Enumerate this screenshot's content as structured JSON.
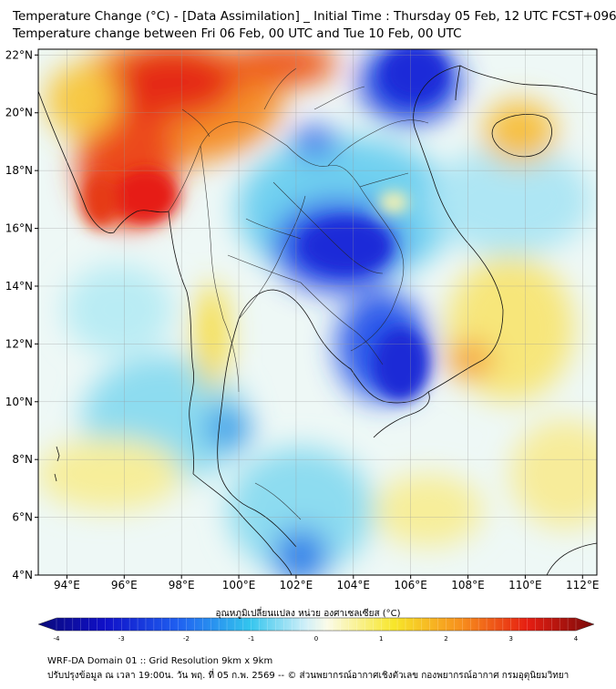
{
  "header": {
    "title_line1": "Temperature Change (°C) - [Data Assimilation] _ Initial Time : Thursday 05 Feb, 12 UTC FCST+096",
    "title_line2": "Temperature change between Fri 06 Feb, 00 UTC and Tue 10 Feb, 00 UTC"
  },
  "map": {
    "lat_labels": [
      "22°N",
      "20°N",
      "18°N",
      "16°N",
      "14°N",
      "12°N",
      "10°N",
      "8°N",
      "6°N",
      "4°N"
    ],
    "lon_labels": [
      "94°E",
      "96°E",
      "98°E",
      "100°E",
      "102°E",
      "104°E",
      "106°E",
      "108°E",
      "110°E",
      "112°E"
    ],
    "lat_values": [
      22,
      20,
      18,
      16,
      14,
      12,
      10,
      8,
      6,
      4
    ],
    "lon_values": [
      94,
      96,
      98,
      100,
      102,
      104,
      106,
      108,
      110,
      112
    ],
    "extent": {
      "lon_min": 93,
      "lon_max": 112.5,
      "lat_min": 4,
      "lat_max": 22.2
    },
    "warm_areas": [
      {
        "region": "Myanmar north / central",
        "lon": 96.5,
        "lat": 19.0,
        "change_c": 3.0
      },
      {
        "region": "Myanmar west coast",
        "lon": 95.5,
        "lat": 17.0,
        "change_c": 3.2
      },
      {
        "region": "Northern Myanmar",
        "lon": 97.5,
        "lat": 21.5,
        "change_c": 2.8
      },
      {
        "region": "Southern China north",
        "lon": 103.0,
        "lat": 21.8,
        "change_c": 2.5
      },
      {
        "region": "Hainan",
        "lon": 109.8,
        "lat": 19.3,
        "change_c": 1.8
      },
      {
        "region": "South Vietnam coast",
        "lon": 108.2,
        "lat": 11.2,
        "change_c": 2.0
      },
      {
        "region": "Myanmar Tanintharyi",
        "lon": 98.8,
        "lat": 11.0,
        "change_c": 1.3
      }
    ],
    "cool_areas": [
      {
        "region": "Northeast Thailand / Laos",
        "lon": 104.2,
        "lat": 15.3,
        "change_c": -3.0
      },
      {
        "region": "Cambodia / Southern Vietnam",
        "lon": 106.0,
        "lat": 11.0,
        "change_c": -3.0
      },
      {
        "region": "Gulf of Tonkin",
        "lon": 106.8,
        "lat": 21.2,
        "change_c": -3.2
      },
      {
        "region": "Northern Laos",
        "lon": 102.5,
        "lat": 19.5,
        "change_c": -2.0
      },
      {
        "region": "Gulf of Thailand south",
        "lon": 102.0,
        "lat": 4.5,
        "change_c": -1.5
      },
      {
        "region": "Andaman Sea",
        "lon": 97.0,
        "lat": 9.0,
        "change_c": -1.0
      }
    ]
  },
  "colorbar": {
    "title": "อุณหภูมิเปลี่ยนแปลง หน่วย องศาเซลเซียส (°C)",
    "tick_labels": [
      "-4",
      "-3",
      "-2",
      "-1",
      "0",
      "1",
      "2",
      "3",
      "4"
    ],
    "min": -4,
    "max": 4,
    "colors": {
      "dark_blue": "#0a0a7a",
      "blue": "#1f2fe0",
      "light_blue": "#33c5ee",
      "white": "#f4faf6",
      "yellow": "#f7e62a",
      "orange": "#f7901d",
      "red": "#e61e12",
      "dark_red": "#7a0a0a"
    }
  },
  "footer": {
    "line1": "WRF-DA Domain 01 :: Grid Resolution 9km x 9km",
    "line2": "ปรับปรุงข้อมูล ณ เวลา 19:00น. วัน พฤ. ที่ 05 ก.พ. 2569 -- © ส่วนพยากรณ์อากาศเชิงตัวเลข กองพยากรณ์อากาศ กรมอุตุนิยมวิทยา"
  }
}
